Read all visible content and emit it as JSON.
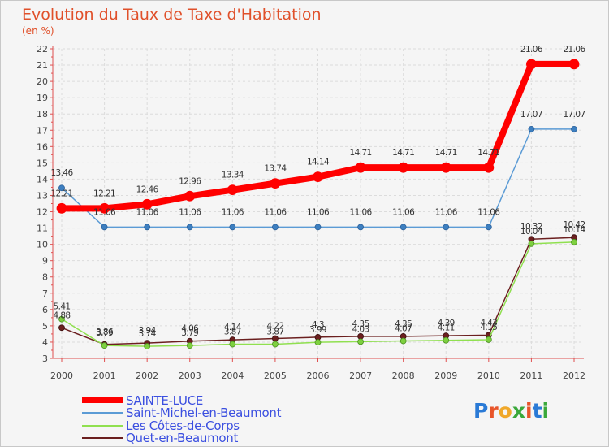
{
  "header": {
    "title": "Evolution du Taux de Taxe d'Habitation",
    "subtitle": "(en %)"
  },
  "logo": {
    "text": "Proxiti",
    "letter_colors": [
      "#2a7ad6",
      "#e8552a",
      "#f0a82a",
      "#3aa83a",
      "#e8552a",
      "#2a7ad6",
      "#3aa83a"
    ]
  },
  "chart_data": {
    "type": "line",
    "title": "Evolution du Taux de Taxe d'Habitation",
    "ylabel": "(en %)",
    "xlabel": "",
    "x": [
      "2000",
      "2001",
      "2002",
      "2003",
      "2004",
      "2005",
      "2006",
      "2007",
      "2008",
      "2009",
      "2010",
      "2011",
      "2012"
    ],
    "ylim": [
      3,
      22
    ],
    "yticks": [
      "3",
      "4",
      "5",
      "6",
      "7",
      "8",
      "9",
      "10",
      "11",
      "12",
      "13",
      "14",
      "15",
      "16",
      "17",
      "18",
      "19",
      "20",
      "21",
      "22"
    ],
    "grid": true,
    "legend_position": "bottom-left",
    "series": [
      {
        "name": "SAINTE-LUCE",
        "color": "#ff0000",
        "values": [
          12.21,
          12.21,
          12.46,
          12.96,
          13.34,
          13.74,
          14.14,
          14.71,
          14.71,
          14.71,
          14.71,
          21.06,
          21.06
        ],
        "labels": [
          "12.21",
          "12.21",
          "12.46",
          "12.96",
          "13.34",
          "13.74",
          "14.14",
          "14.71",
          "14.71",
          "14.71",
          "14.71",
          "21.06",
          "21.06"
        ]
      },
      {
        "name": "Saint-Michel-en-Beaumont",
        "color": "#5b9bd5",
        "values": [
          13.46,
          11.06,
          11.06,
          11.06,
          11.06,
          11.06,
          11.06,
          11.06,
          11.06,
          11.06,
          11.06,
          17.07,
          17.07
        ],
        "labels": [
          "13.46",
          "11.06",
          "11.06",
          "11.06",
          "11.06",
          "11.06",
          "11.06",
          "11.06",
          "11.06",
          "11.06",
          "11.06",
          "17.07",
          "17.07"
        ]
      },
      {
        "name": "Les Côtes-de-Corps",
        "color": "#90e050",
        "values": [
          5.41,
          3.79,
          3.74,
          3.79,
          3.87,
          3.87,
          3.99,
          4.03,
          4.07,
          4.11,
          4.15,
          10.04,
          10.14
        ],
        "labels": [
          "5.41",
          "3.79",
          "3.74",
          "3.79",
          "3.87",
          "3.87",
          "3.99",
          "4.03",
          "4.07",
          "4.11",
          "4.15",
          "10.04",
          "10.14"
        ]
      },
      {
        "name": "Quet-en-Beaumont",
        "color": "#6b1f1f",
        "values": [
          4.88,
          3.86,
          3.94,
          4.06,
          4.14,
          4.22,
          4.3,
          4.35,
          4.35,
          4.39,
          4.43,
          10.32,
          10.42
        ],
        "labels": [
          "4.88",
          "3.86",
          "3.94",
          "4.06",
          "4.14",
          "4.22",
          "4.3",
          "4.35",
          "4.35",
          "4.39",
          "4.43",
          "10.32",
          "10.42"
        ]
      }
    ]
  }
}
